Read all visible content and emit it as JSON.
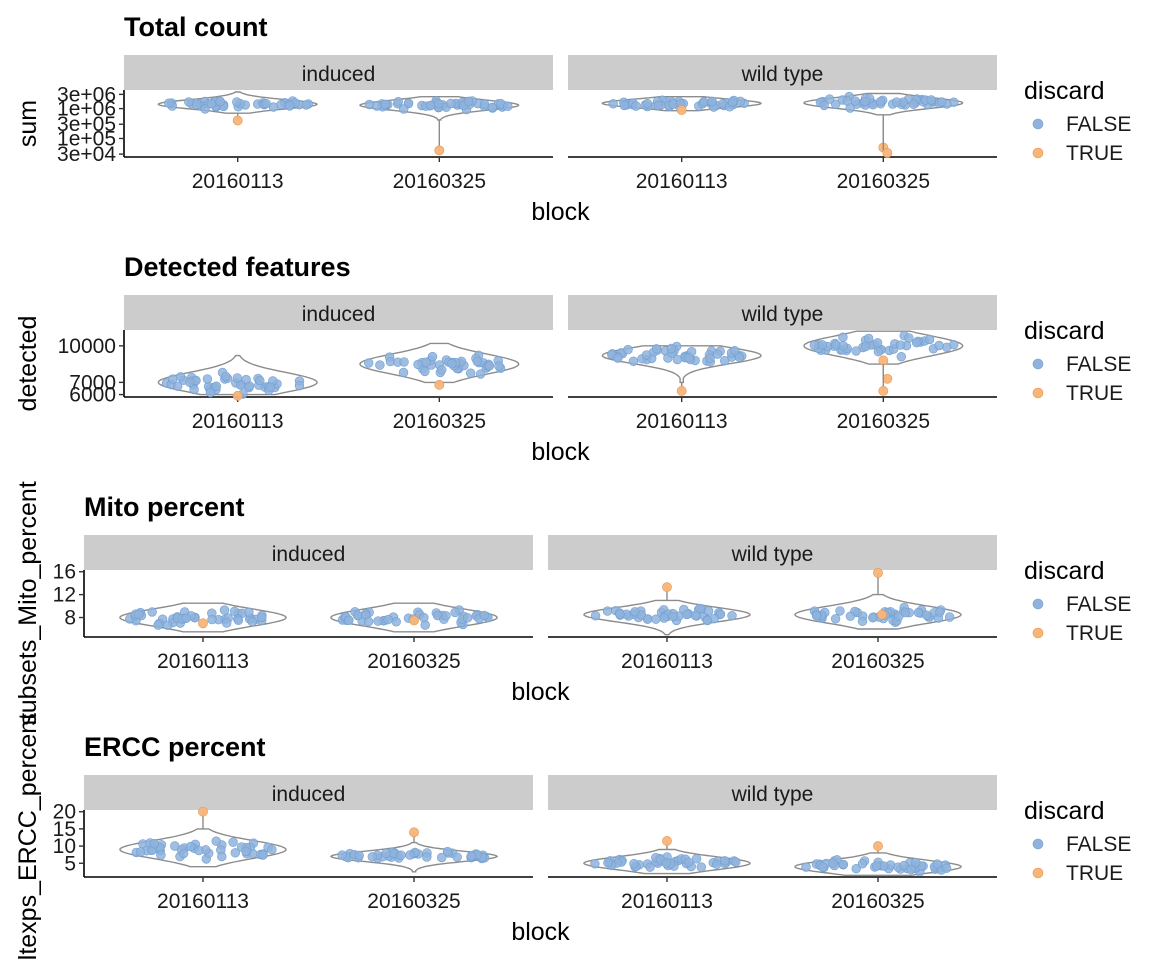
{
  "legend": {
    "title": "discard",
    "items": [
      {
        "label": "FALSE",
        "color": "#8fb3dc"
      },
      {
        "label": "TRUE",
        "color": "#f7b57a"
      }
    ]
  },
  "chart_data": [
    {
      "type": "violin",
      "title": "Total count",
      "xlabel": "block",
      "ylabel": "sum",
      "log_y": true,
      "ylim": [
        24000,
        4200000
      ],
      "yticks": [
        30000,
        100000,
        300000,
        1000000,
        3000000
      ],
      "ytick_labels": [
        "3e+04",
        "1e+05",
        "3e+05",
        "1e+06",
        "3e+06"
      ],
      "panels": [
        {
          "strip": "induced",
          "groups": [
            {
              "x": "20160113",
              "median": 1400000,
              "q1": 1050000,
              "q3": 1700000,
              "min": 700000,
              "max": 3600000,
              "outliers": [
                {
                  "value": 400000,
                  "discard": "TRUE"
                }
              ]
            },
            {
              "x": "20160325",
              "median": 1300000,
              "q1": 950000,
              "q3": 1600000,
              "min": 420000,
              "max": 2500000,
              "outliers": [
                {
                  "value": 40000,
                  "discard": "TRUE"
                }
              ]
            }
          ]
        },
        {
          "strip": "wild type",
          "groups": [
            {
              "x": "20160113",
              "median": 1500000,
              "q1": 1200000,
              "q3": 1850000,
              "min": 850000,
              "max": 2500000,
              "outliers": [
                {
                  "value": 900000,
                  "discard": "TRUE"
                }
              ]
            },
            {
              "x": "20160325",
              "median": 1550000,
              "q1": 1150000,
              "q3": 2000000,
              "min": 620000,
              "max": 3200000,
              "outliers": [
                {
                  "value": 50000,
                  "discard": "TRUE"
                },
                {
                  "value": 33000,
                  "discard": "TRUE"
                }
              ]
            }
          ]
        }
      ]
    },
    {
      "type": "violin",
      "title": "Detected features",
      "xlabel": "block",
      "ylabel": "detected",
      "log_y": false,
      "ylim": [
        5800,
        11300
      ],
      "yticks": [
        6000,
        7000,
        10000
      ],
      "ytick_labels": [
        "6000",
        "7000",
        "10000"
      ],
      "panels": [
        {
          "strip": "induced",
          "groups": [
            {
              "x": "20160113",
              "median": 7000,
              "q1": 6600,
              "q3": 7700,
              "min": 6000,
              "max": 9200,
              "outliers": [
                {
                  "value": 5900,
                  "discard": "TRUE"
                }
              ]
            },
            {
              "x": "20160325",
              "median": 8500,
              "q1": 7900,
              "q3": 9000,
              "min": 7000,
              "max": 10200,
              "outliers": [
                {
                  "value": 6800,
                  "discard": "TRUE"
                }
              ]
            }
          ]
        },
        {
          "strip": "wild type",
          "groups": [
            {
              "x": "20160113",
              "median": 9200,
              "q1": 8700,
              "q3": 9600,
              "min": 7000,
              "max": 10000,
              "outliers": [
                {
                  "value": 6300,
                  "discard": "TRUE"
                }
              ]
            },
            {
              "x": "20160325",
              "median": 10000,
              "q1": 9500,
              "q3": 10600,
              "min": 8500,
              "max": 11200,
              "outliers": [
                {
                  "value": 8800,
                  "discard": "TRUE"
                },
                {
                  "value": 7300,
                  "discard": "TRUE"
                },
                {
                  "value": 6300,
                  "discard": "TRUE"
                }
              ]
            }
          ]
        }
      ]
    },
    {
      "type": "violin",
      "title": "Mito percent",
      "xlabel": "block",
      "ylabel": "subsets_Mito_percent",
      "log_y": false,
      "ylim": [
        4.6,
        16.3
      ],
      "yticks": [
        8,
        12,
        16
      ],
      "ytick_labels": [
        "8",
        "12",
        "16"
      ],
      "panels": [
        {
          "strip": "induced",
          "groups": [
            {
              "x": "20160113",
              "median": 8,
              "q1": 7,
              "q3": 9,
              "min": 5.5,
              "max": 10.5,
              "outliers": [
                {
                  "value": 7,
                  "discard": "TRUE"
                }
              ]
            },
            {
              "x": "20160325",
              "median": 8,
              "q1": 7,
              "q3": 9,
              "min": 5.5,
              "max": 10.5,
              "outliers": [
                {
                  "value": 7.5,
                  "discard": "TRUE"
                }
              ]
            }
          ]
        },
        {
          "strip": "wild type",
          "groups": [
            {
              "x": "20160113",
              "median": 8.5,
              "q1": 7.5,
              "q3": 9.2,
              "min": 5,
              "max": 11,
              "outliers": [
                {
                  "value": 13.3,
                  "discard": "TRUE"
                }
              ]
            },
            {
              "x": "20160325",
              "median": 8.5,
              "q1": 7.5,
              "q3": 9.5,
              "min": 6,
              "max": 12,
              "outliers": [
                {
                  "value": 15.8,
                  "discard": "TRUE"
                },
                {
                  "value": 8.5,
                  "discard": "TRUE"
                }
              ]
            }
          ]
        }
      ]
    },
    {
      "type": "violin",
      "title": "ERCC percent",
      "xlabel": "block",
      "ylabel": "altexps_ERCC_percent",
      "log_y": false,
      "ylim": [
        1,
        20.5
      ],
      "yticks": [
        5,
        10,
        15,
        20
      ],
      "ytick_labels": [
        "5",
        "10",
        "15",
        "20"
      ],
      "panels": [
        {
          "strip": "induced",
          "groups": [
            {
              "x": "20160113",
              "median": 9,
              "q1": 7,
              "q3": 10.5,
              "min": 4,
              "max": 15,
              "outliers": [
                {
                  "value": 20,
                  "discard": "TRUE"
                }
              ]
            },
            {
              "x": "20160325",
              "median": 7,
              "q1": 6,
              "q3": 8,
              "min": 2.5,
              "max": 11,
              "outliers": [
                {
                  "value": 14,
                  "discard": "TRUE"
                }
              ]
            }
          ]
        },
        {
          "strip": "wild type",
          "groups": [
            {
              "x": "20160113",
              "median": 5,
              "q1": 4,
              "q3": 6.5,
              "min": 2,
              "max": 9,
              "outliers": [
                {
                  "value": 11.5,
                  "discard": "TRUE"
                }
              ]
            },
            {
              "x": "20160325",
              "median": 4,
              "q1": 3,
              "q3": 5.5,
              "min": 1.5,
              "max": 8,
              "outliers": [
                {
                  "value": 10,
                  "discard": "TRUE"
                }
              ]
            }
          ]
        }
      ]
    }
  ]
}
